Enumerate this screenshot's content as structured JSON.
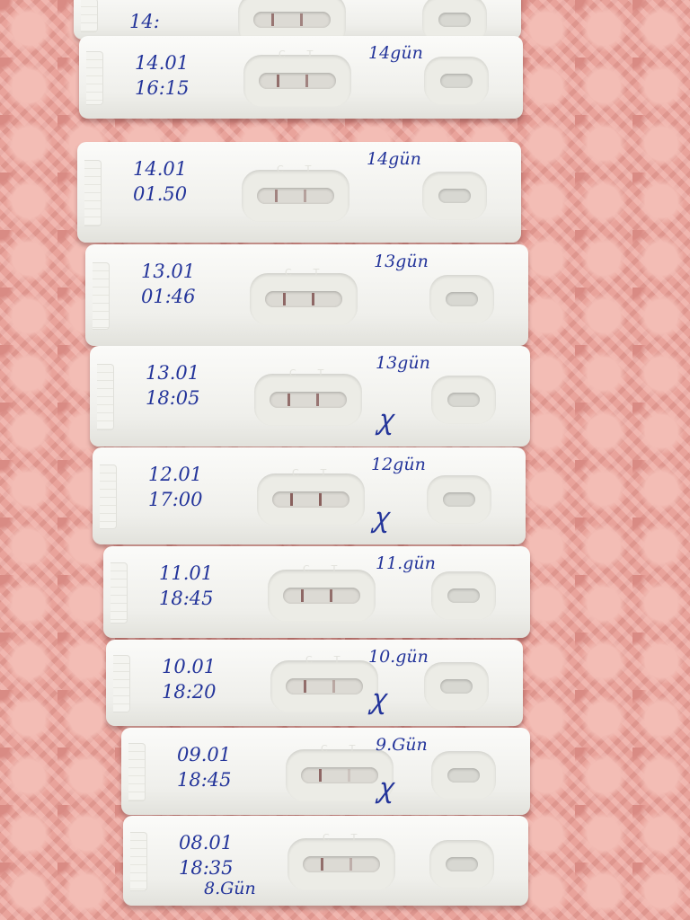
{
  "colors": {
    "background": "#e9a39b",
    "strip": "#f5f5f2",
    "ink": "#23349a",
    "test_line": "#7a4a48"
  },
  "strips": [
    {
      "date": "",
      "time": "14:",
      "day": "",
      "signature": false,
      "control_line": 0.7,
      "test_line": 0.6,
      "partial": true
    },
    {
      "date": "14.01",
      "time": "16:15",
      "day": "14gün",
      "signature": false,
      "control_line": 0.75,
      "test_line": 0.6
    },
    {
      "date": "14.01",
      "time": "01.50",
      "day": "14gün",
      "signature": false,
      "control_line": 0.6,
      "test_line": 0.4
    },
    {
      "date": "13.01",
      "time": "01:46",
      "day": "13gün",
      "signature": false,
      "control_line": 0.8,
      "test_line": 0.8
    },
    {
      "date": "13.01",
      "time": "18:05",
      "day": "13gün",
      "signature": true,
      "control_line": 0.75,
      "test_line": 0.7
    },
    {
      "date": "12.01",
      "time": "17:00",
      "day": "12gün",
      "signature": true,
      "control_line": 0.85,
      "test_line": 0.85
    },
    {
      "date": "11.01",
      "time": "18:45",
      "day": "11.gün",
      "signature": false,
      "control_line": 0.8,
      "test_line": 0.75
    },
    {
      "date": "10.01",
      "time": "18:20",
      "day": "10.gün",
      "signature": true,
      "control_line": 0.75,
      "test_line": 0.35
    },
    {
      "date": "09.01",
      "time": "18:45",
      "day": "9.Gün",
      "signature": true,
      "control_line": 0.8,
      "test_line": 0.15
    },
    {
      "date": "08.01",
      "time": "18:35",
      "day": "8.Gün",
      "signature": false,
      "control_line": 0.75,
      "test_line": 0.3
    }
  ],
  "strip_markings": {
    "control": "C",
    "test": "T"
  },
  "signature_glyph": "ꭕ"
}
